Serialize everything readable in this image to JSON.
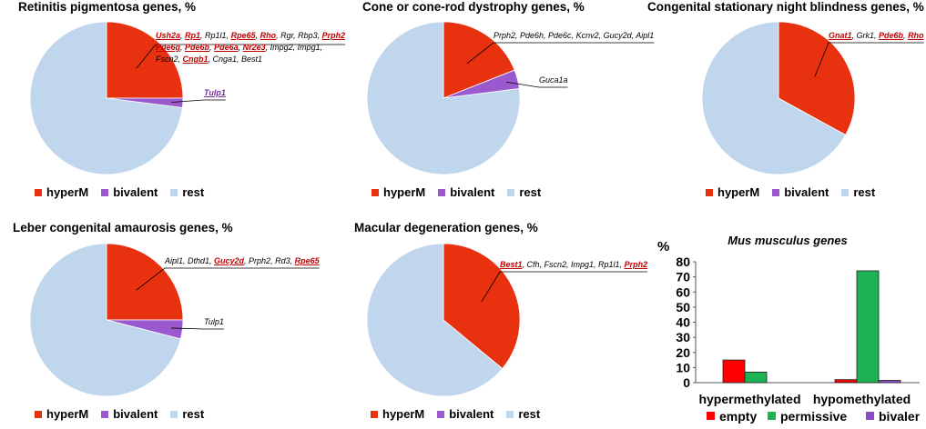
{
  "colors": {
    "hyperM": "#e8310f",
    "bivalent": "#9b59d0",
    "rest": "#c0d6ed",
    "empty": "#ff0000",
    "permissive": "#1db355",
    "bar_bivalent": "#8e4bc7"
  },
  "legend_pie": [
    "hyperM",
    "bivalent",
    "rest"
  ],
  "chart_data": [
    {
      "type": "pie",
      "title": "Retinitis pigmentosa genes, %",
      "slices": [
        {
          "label": "hyperM",
          "value": 25
        },
        {
          "label": "bivalent",
          "value": 2
        },
        {
          "label": "rest",
          "value": 73
        }
      ],
      "annotations": [
        {
          "slice": "hyperM",
          "lines": [
            [
              {
                "t": "Ush2a",
                "h": 1
              },
              {
                "t": ", "
              },
              {
                "t": "Rp1",
                "h": 1
              },
              {
                "t": ", Rp1l1, "
              },
              {
                "t": "Rpe65",
                "h": 1
              },
              {
                "t": ", "
              },
              {
                "t": "Rho",
                "h": 1
              },
              {
                "t": ", Rgr, Rbp3, "
              },
              {
                "t": "Prph2",
                "h": 1
              }
            ],
            [
              {
                "t": "Pde6g",
                "h": 1
              },
              {
                "t": ", "
              },
              {
                "t": "Pde6b",
                "h": 1
              },
              {
                "t": ", "
              },
              {
                "t": "Pde6a",
                "h": 1
              },
              {
                "t": ", "
              },
              {
                "t": "Nr2e3",
                "h": 1
              },
              {
                "t": ", Impg2, Impg1,"
              }
            ],
            [
              {
                "t": "Fscn2, "
              },
              {
                "t": "Cngb1",
                "h": 1
              },
              {
                "t": ", Cnga1, Best1"
              }
            ]
          ]
        },
        {
          "slice": "bivalent",
          "lines": [
            [
              {
                "t": "Tulp1",
                "p": 1
              }
            ]
          ]
        }
      ]
    },
    {
      "type": "pie",
      "title": "Cone or cone-rod dystrophy genes, %",
      "slices": [
        {
          "label": "hyperM",
          "value": 19
        },
        {
          "label": "bivalent",
          "value": 4
        },
        {
          "label": "rest",
          "value": 77
        }
      ],
      "annotations": [
        {
          "slice": "hyperM",
          "lines": [
            [
              {
                "t": "Prph2, Pde6h, Pde6c, Kcnv2, Gucy2d, Aipl1"
              }
            ]
          ]
        },
        {
          "slice": "bivalent",
          "lines": [
            [
              {
                "t": "Guca1a"
              }
            ]
          ]
        }
      ]
    },
    {
      "type": "pie",
      "title": "Congenital stationary night blindness genes, %",
      "slices": [
        {
          "label": "hyperM",
          "value": 33
        },
        {
          "label": "bivalent",
          "value": 0
        },
        {
          "label": "rest",
          "value": 67
        }
      ],
      "annotations": [
        {
          "slice": "hyperM",
          "lines": [
            [
              {
                "t": "Gnat1",
                "h": 1
              },
              {
                "t": ", Grk1, "
              },
              {
                "t": "Pde6b",
                "h": 1
              },
              {
                "t": ", "
              },
              {
                "t": "Rho",
                "h": 1
              }
            ]
          ]
        }
      ]
    },
    {
      "type": "pie",
      "title": "Leber congenital amaurosis genes, %",
      "slices": [
        {
          "label": "hyperM",
          "value": 25
        },
        {
          "label": "bivalent",
          "value": 4
        },
        {
          "label": "rest",
          "value": 71
        }
      ],
      "annotations": [
        {
          "slice": "hyperM",
          "lines": [
            [
              {
                "t": "Aipl1, Dthd1, "
              },
              {
                "t": "Gucy2d",
                "h": 1
              },
              {
                "t": ", Prph2, Rd3, "
              },
              {
                "t": "Rpe65",
                "h": 1
              }
            ]
          ]
        },
        {
          "slice": "bivalent",
          "lines": [
            [
              {
                "t": "Tulp1"
              }
            ]
          ]
        }
      ]
    },
    {
      "type": "pie",
      "title": "Macular degeneration genes, %",
      "slices": [
        {
          "label": "hyperM",
          "value": 36
        },
        {
          "label": "bivalent",
          "value": 0
        },
        {
          "label": "rest",
          "value": 64
        }
      ],
      "annotations": [
        {
          "slice": "hyperM",
          "lines": [
            [
              {
                "t": "Best1",
                "h": 1
              },
              {
                "t": ", Cfh, Fscn2, Impg1, Rp1l1, "
              },
              {
                "t": "Prph2",
                "h": 1
              }
            ]
          ]
        }
      ]
    },
    {
      "type": "bar",
      "title": "Mus musculus genes",
      "ylabel": "%",
      "categories": [
        "hypermethylated",
        "hypomethylated"
      ],
      "series": [
        {
          "name": "empty",
          "values": [
            15,
            2
          ]
        },
        {
          "name": "permissive",
          "values": [
            7,
            74
          ]
        },
        {
          "name": "bivalent",
          "values": [
            0,
            1.5
          ]
        }
      ],
      "ylim": [
        0,
        80
      ],
      "yticks": [
        0,
        10,
        20,
        30,
        40,
        50,
        60,
        70,
        80
      ],
      "grid": false
    }
  ]
}
